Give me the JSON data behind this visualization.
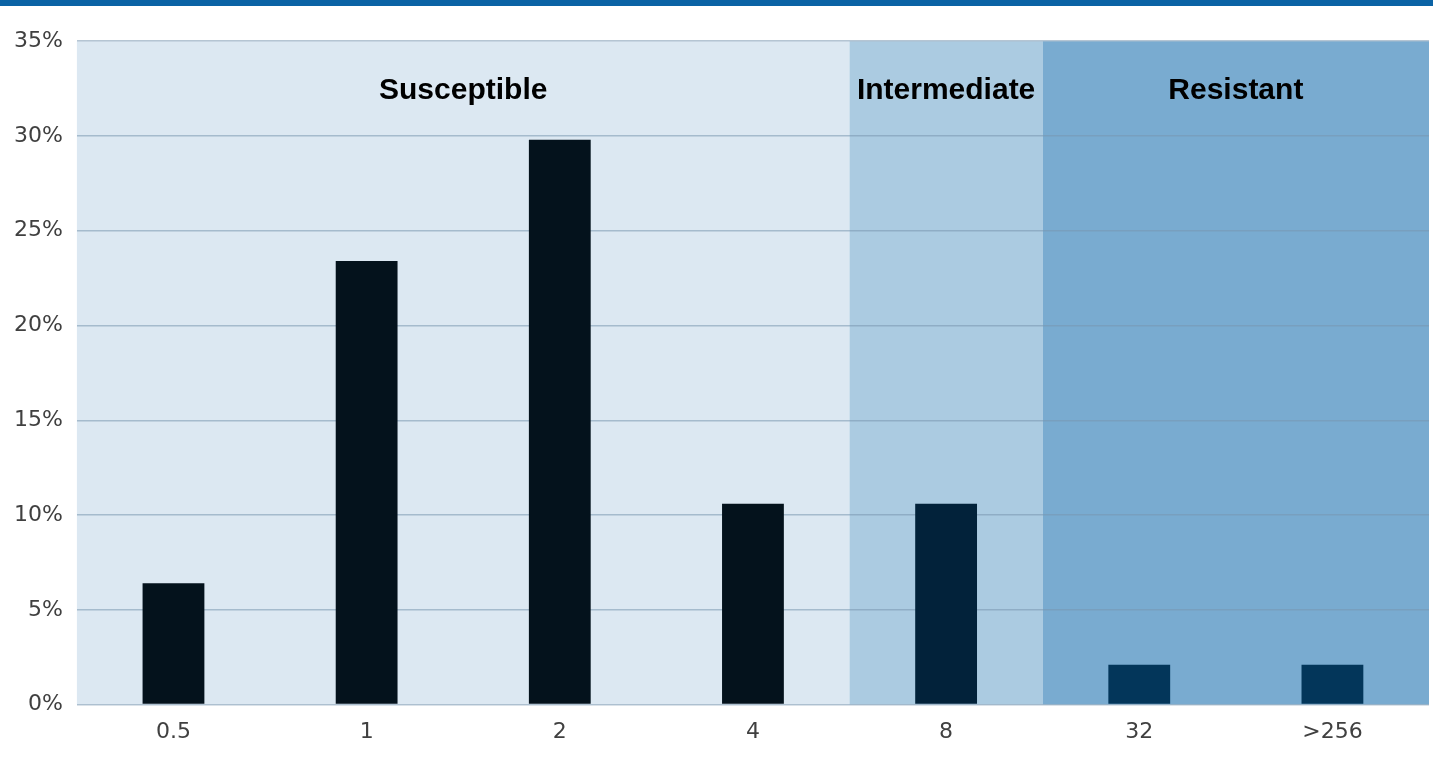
{
  "chart_data": {
    "type": "bar",
    "categories": [
      "0.5",
      "1",
      "2",
      "4",
      "8",
      "32",
      ">256"
    ],
    "values": [
      6.4,
      23.4,
      29.8,
      10.6,
      10.6,
      2.1,
      2.1
    ],
    "colors": [
      "#04121c",
      "#04121c",
      "#04121c",
      "#04121c",
      "#02223a",
      "#03365a",
      "#03365a"
    ],
    "ylim": [
      0,
      35
    ],
    "yticks": [
      {
        "value": 0,
        "label": "0%"
      },
      {
        "value": 5,
        "label": "5%"
      },
      {
        "value": 10,
        "label": "10%"
      },
      {
        "value": 15,
        "label": "15%"
      },
      {
        "value": 20,
        "label": "20%"
      },
      {
        "value": 25,
        "label": "25%"
      },
      {
        "value": 30,
        "label": "30%"
      },
      {
        "value": 35,
        "label": "35%"
      }
    ],
    "grid": "y",
    "legend": false,
    "bands": [
      {
        "axis": "x",
        "from": "0.5",
        "to": "4",
        "label": "Susceptible",
        "color": "#dce8f2"
      },
      {
        "axis": "x",
        "from": "8",
        "to": "8",
        "label": "Intermediate",
        "color": "#abcbe1"
      },
      {
        "axis": "x",
        "from": "32",
        "to": ">256",
        "label": "Resistant",
        "color": "#79abd0"
      }
    ]
  }
}
